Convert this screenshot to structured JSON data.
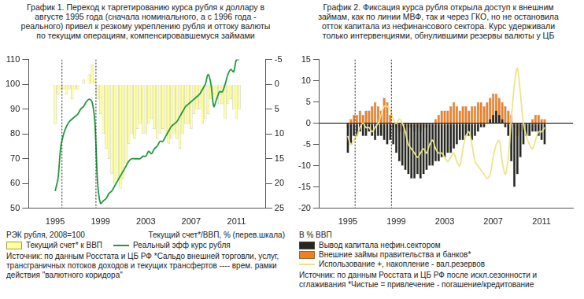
{
  "chart_data": [
    {
      "type": "bar",
      "title": "График 1. Переход к таргетированию курса рубля к доллару в августе 1995 года (сначала номинального, а с 1996 года - реального) привел к резкому укреплению рубля и оттоку валюты по текущим операциям, компенсировавшемуся займами",
      "x": [
        1995,
        1995.25,
        1995.5,
        1995.75,
        1996,
        1996.25,
        1996.5,
        1996.75,
        1997,
        1997.25,
        1997.5,
        1997.75,
        1998,
        1998.25,
        1998.5,
        1998.75,
        1999,
        1999.25,
        1999.5,
        1999.75,
        2000,
        2000.25,
        2000.5,
        2000.75,
        2001,
        2001.25,
        2001.5,
        2001.75,
        2002,
        2002.25,
        2002.5,
        2002.75,
        2003,
        2003.25,
        2003.5,
        2003.75,
        2004,
        2004.25,
        2004.5,
        2004.75,
        2005,
        2005.25,
        2005.5,
        2005.75,
        2006,
        2006.25,
        2006.5,
        2006.75,
        2007,
        2007.25,
        2007.5,
        2007.75,
        2008,
        2008.25,
        2008.5,
        2008.75,
        2009,
        2009.25,
        2009.5,
        2009.75,
        2010,
        2010.25,
        2010.5,
        2010.75,
        2011,
        2011.25
      ],
      "series": [
        {
          "name": "Текущий счет* к ВВП",
          "type": "bar",
          "color": "#ffff9c",
          "axis": "y2",
          "values": [
            8,
            2,
            1,
            1,
            2,
            1,
            3,
            1,
            1,
            0,
            -1,
            0,
            -2,
            -4,
            -1,
            3,
            6,
            10,
            13,
            15,
            18,
            20,
            19,
            21,
            19,
            16,
            12,
            10,
            11,
            9,
            8,
            10,
            10,
            8,
            7,
            9,
            11,
            10,
            9,
            10,
            12,
            11,
            10,
            11,
            13,
            10,
            8,
            8,
            9,
            6,
            5,
            5,
            8,
            7,
            6,
            3,
            2,
            3,
            4,
            4,
            7,
            4,
            3,
            5,
            7,
            5
          ]
        },
        {
          "name": "Реальный эфф курс рубля",
          "type": "line",
          "color": "#1f9a3c",
          "values": [
            57,
            62,
            75,
            80,
            83,
            85,
            86,
            87,
            88,
            90,
            91,
            93,
            94,
            93,
            85,
            60,
            52,
            53,
            54,
            56,
            57,
            59,
            61,
            63,
            65,
            67,
            69,
            70,
            70,
            70,
            70,
            71,
            71,
            73,
            72,
            74,
            75,
            77,
            77,
            79,
            81,
            83,
            84,
            85,
            87,
            89,
            91,
            92,
            93,
            94,
            95,
            96,
            98,
            100,
            104,
            100,
            91,
            94,
            97,
            97,
            100,
            104,
            106,
            105,
            110,
            110
          ]
        }
      ],
      "xlim": [
        1994.75,
        2011.5
      ],
      "xticks": [
        1995,
        1999,
        2003,
        2007,
        2011
      ],
      "ylim": [
        50,
        110
      ],
      "yticks": [
        50,
        60,
        70,
        80,
        90,
        100,
        110
      ],
      "y2lim": [
        25,
        -5
      ],
      "y2ticks": [
        -5,
        0,
        5,
        10,
        15,
        20,
        25
      ],
      "ylabel": "РЭК рубля, 2008=100",
      "y2label": "Текущий счет*/ВВП, % (перев.шкала)",
      "vlines": {
        "x": [
          1995.6,
          1998.6
        ],
        "line_style": "dotted"
      },
      "note": "Источник: по данным Росстата и ЦБ РФ *Сальдо внешней торговли, услуг, трансграничных потоков доходов и текущих трансфертов  ---- врем. рамки действия \"валютного коридора\"",
      "grid": false,
      "legend": "bottom"
    },
    {
      "type": "bar",
      "title": "График 2. Фиксация курса рубля открыла доступ к внешним займам, как по линии МВФ, так и через ГКО, но не остановила отток капитала из нефинансового сектора. Курс удерживали только интервенциями, обнулившими резервы валюты у ЦБ",
      "x": [
        1995,
        1995.25,
        1995.5,
        1995.75,
        1996,
        1996.25,
        1996.5,
        1996.75,
        1997,
        1997.25,
        1997.5,
        1997.75,
        1998,
        1998.25,
        1998.5,
        1998.75,
        1999,
        1999.25,
        1999.5,
        1999.75,
        2000,
        2000.25,
        2000.5,
        2000.75,
        2001,
        2001.25,
        2001.5,
        2001.75,
        2002,
        2002.25,
        2002.5,
        2002.75,
        2003,
        2003.25,
        2003.5,
        2003.75,
        2004,
        2004.25,
        2004.5,
        2004.75,
        2005,
        2005.25,
        2005.5,
        2005.75,
        2006,
        2006.25,
        2006.5,
        2006.75,
        2007,
        2007.25,
        2007.5,
        2007.75,
        2008,
        2008.25,
        2008.5,
        2008.75,
        2009,
        2009.25,
        2009.5,
        2009.75,
        2010,
        2010.25,
        2010.5,
        2010.75,
        2011,
        2011.25
      ],
      "series": [
        {
          "name": "Вывод капитала нефин.сектором",
          "type": "bar",
          "color": "#262626",
          "values": [
            -7,
            -5,
            -3,
            -3,
            -2,
            -3,
            -3,
            -2,
            -3,
            -4,
            -3,
            -3,
            -4,
            -5,
            -4,
            -5,
            -7,
            -9,
            -10,
            -11,
            -12,
            -13,
            -13,
            -12,
            -13,
            -12,
            -11,
            -10,
            -10,
            -9,
            -9,
            -8,
            -8,
            -7,
            -7,
            -6,
            -5,
            -4,
            -4,
            -3,
            -3,
            -4,
            -3,
            -2,
            -1,
            -1,
            0,
            1,
            2,
            3,
            2,
            1,
            -1,
            -3,
            -9,
            -15,
            -12,
            -8,
            -5,
            -3,
            -3,
            -2,
            -2,
            -3,
            -4,
            -5
          ]
        },
        {
          "name": "Внешние займы правительства и банков*",
          "type": "bar",
          "color": "#f07f28",
          "values": [
            -1,
            1,
            2,
            2,
            3,
            2,
            3,
            3,
            4,
            5,
            4,
            3,
            6,
            5,
            2,
            -1,
            -1,
            -2,
            -2,
            -2,
            -1,
            -1,
            -2,
            -1,
            -2,
            -1,
            -1,
            0,
            0,
            1,
            2,
            3,
            3,
            3,
            4,
            5,
            4,
            3,
            4,
            4,
            3,
            4,
            4,
            5,
            5,
            4,
            5,
            6,
            7,
            7,
            6,
            5,
            4,
            3,
            2,
            -1,
            -3,
            -2,
            -1,
            0,
            0,
            1,
            2,
            2,
            1,
            1
          ]
        },
        {
          "name": "Использование +, накопление - вал.резервов",
          "type": "line",
          "color": "#ece488",
          "values": [
            -3,
            -5,
            -4,
            -3,
            -1,
            0,
            -1,
            -1,
            -2,
            -1,
            0,
            2,
            4,
            4,
            3,
            1,
            0,
            1,
            0,
            -2,
            -5,
            -6,
            -7,
            -8,
            -7,
            -6,
            -7,
            -5,
            -4,
            -6,
            -7,
            -7,
            -8,
            -9,
            -8,
            -7,
            -9,
            -10,
            -6,
            -3,
            -2,
            -5,
            -9,
            -10,
            -11,
            -12,
            -13,
            -12,
            -8,
            -5,
            -4,
            -9,
            -12,
            -8,
            1,
            9,
            13,
            7,
            0,
            -3,
            -5,
            -6,
            -4,
            -2,
            -2,
            -1
          ]
        }
      ],
      "xlim": [
        1994.75,
        2011.5
      ],
      "xticks": [
        1995,
        1999,
        2003,
        2007,
        2011
      ],
      "ylim": [
        -20,
        15
      ],
      "yticks": [
        -20,
        -15,
        -10,
        -5,
        0,
        5,
        10,
        15
      ],
      "ylabel": "В % ВВП",
      "vlines": {
        "x": [
          1995.6,
          1998.6
        ],
        "line_style": "dotted"
      },
      "note": "Источник: по данным Росстата и ЦБ РФ после искл.сезонности и сглаживания *Чистые = привлечение - погашение/кредитование",
      "grid": false,
      "legend": "bottom"
    }
  ]
}
